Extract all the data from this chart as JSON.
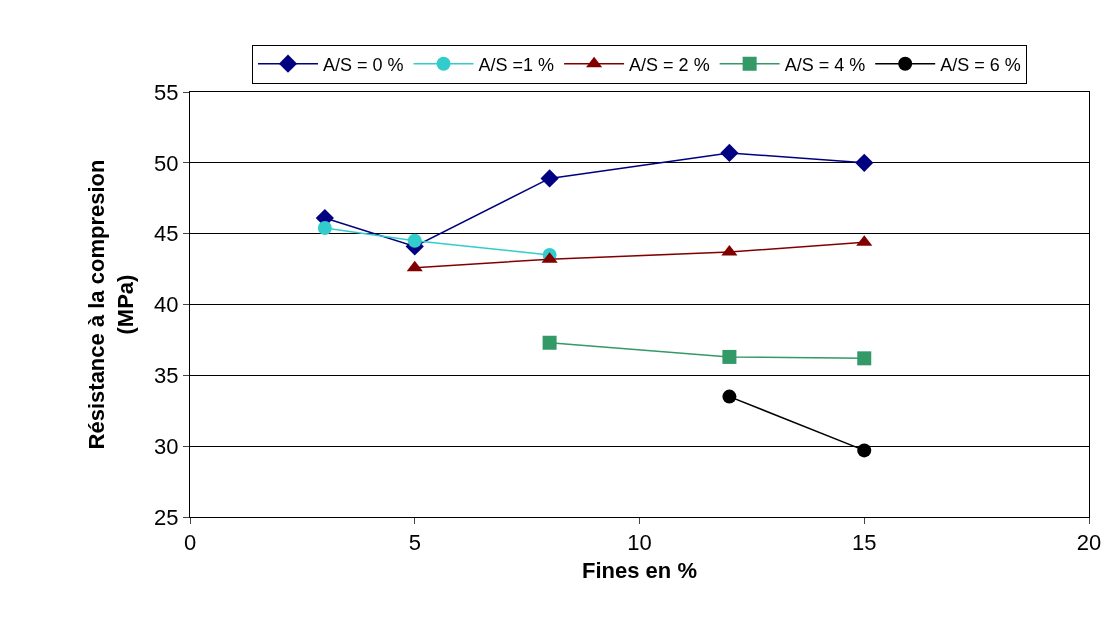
{
  "chart_data": {
    "type": "line",
    "xlabel": "Fines en %",
    "ylabel": "Résistance à la compresion\n(MPa)",
    "xlim": [
      0,
      20
    ],
    "xticks": [
      0,
      5,
      10,
      15,
      20
    ],
    "ylim": [
      25,
      55
    ],
    "yticks": [
      25,
      30,
      35,
      40,
      45,
      50,
      55
    ],
    "grid": "y",
    "legend": "top",
    "series": [
      {
        "name": "A/S = 0 %",
        "color": "#000080",
        "marker": "diamond",
        "x": [
          3,
          5,
          8,
          12,
          15
        ],
        "values": [
          46.1,
          44.1,
          48.9,
          50.7,
          50
        ]
      },
      {
        "name": "A/S =1 %",
        "color": "#33cccc",
        "marker": "circle",
        "x": [
          3,
          5,
          8
        ],
        "values": [
          45.4,
          44.5,
          43.5
        ]
      },
      {
        "name": "A/S = 2 %",
        "color": "#800000",
        "marker": "triangle",
        "x": [
          5,
          8,
          12,
          15
        ],
        "values": [
          42.6,
          43.2,
          43.7,
          44.4
        ]
      },
      {
        "name": "A/S = 4 %",
        "color": "#339966",
        "marker": "square",
        "x": [
          8,
          12,
          15
        ],
        "values": [
          37.3,
          36.3,
          36.2
        ]
      },
      {
        "name": "A/S = 6 %",
        "color": "#000000",
        "marker": "circle",
        "x": [
          12,
          15
        ],
        "values": [
          33.5,
          29.7
        ]
      }
    ]
  }
}
